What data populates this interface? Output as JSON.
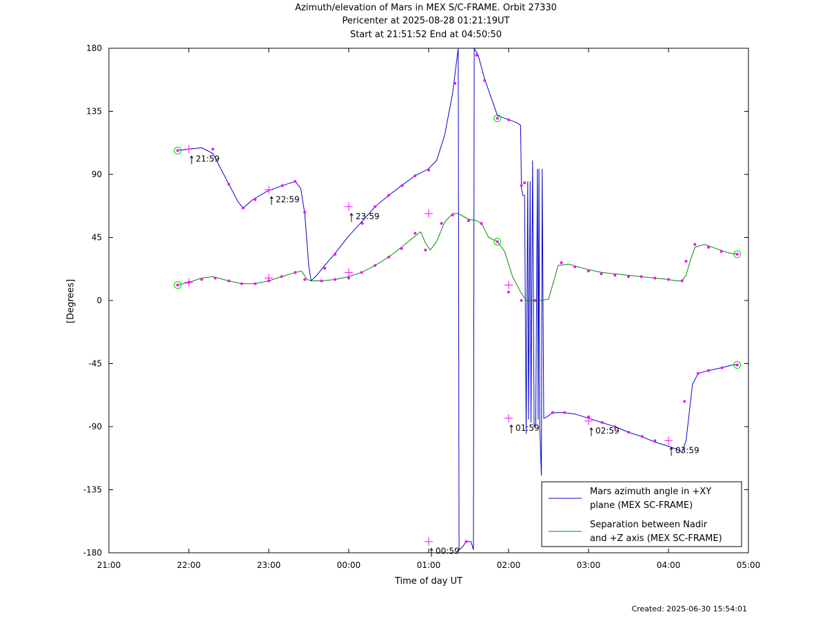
{
  "title": {
    "line1": "Azimuth/elevation of Mars in MEX S/C-FRAME.  Orbit 27330",
    "line2": "Pericenter at 2025-08-28 01:21:19UT",
    "line3": "Start at 21:51:52 End at 04:50:50"
  },
  "footer": "Created: 2025-06-30 15:54:01",
  "chart_data": {
    "type": "line",
    "xlabel": "Time of day UT",
    "ylabel": "[Degrees]",
    "x_units": "hours after 21:00 UT",
    "xlim": [
      0,
      8
    ],
    "ylim": [
      -180,
      180
    ],
    "x_ticks": [
      0,
      1,
      2,
      3,
      4,
      5,
      6,
      7,
      8
    ],
    "x_tick_labels": [
      "21:00",
      "22:00",
      "23:00",
      "00:00",
      "01:00",
      "02:00",
      "03:00",
      "04:00",
      "05:00"
    ],
    "y_ticks": [
      180,
      135,
      90,
      45,
      0,
      -45,
      -90,
      -135,
      -180
    ],
    "y_tick_labels": [
      "180",
      "135",
      "90",
      "45",
      "0",
      "-45",
      "-90",
      "-135",
      "-180"
    ],
    "grid": false,
    "legend_position": "bottom-right",
    "series": [
      {
        "name": "Mars azimuth angle in +XY plane (MEX SC-FRAME)",
        "legend_lines": [
          "Mars azimuth angle in +XY",
          "plane (MEX SC-FRAME)"
        ],
        "color": "#0000cc",
        "points": [
          [
            0.86,
            107
          ],
          [
            1.0,
            108
          ],
          [
            1.16,
            109
          ],
          [
            1.3,
            105
          ],
          [
            1.5,
            83
          ],
          [
            1.62,
            70
          ],
          [
            1.68,
            66
          ],
          [
            1.8,
            72
          ],
          [
            1.98,
            78
          ],
          [
            2.17,
            82
          ],
          [
            2.33,
            85
          ],
          [
            2.4,
            80
          ],
          [
            2.45,
            62
          ],
          [
            2.5,
            25
          ],
          [
            2.53,
            14
          ],
          [
            2.6,
            18
          ],
          [
            2.7,
            25
          ],
          [
            2.82,
            33
          ],
          [
            3.0,
            46
          ],
          [
            3.16,
            56
          ],
          [
            3.33,
            67
          ],
          [
            3.5,
            75
          ],
          [
            3.66,
            82
          ],
          [
            3.83,
            89
          ],
          [
            4.0,
            94
          ],
          [
            4.1,
            100
          ],
          [
            4.2,
            118
          ],
          [
            4.3,
            148
          ],
          [
            4.37,
            180
          ],
          [
            4.38,
            -178
          ],
          [
            4.42,
            -176
          ],
          [
            4.47,
            -172
          ],
          [
            4.53,
            -172
          ],
          [
            4.56,
            -178
          ],
          [
            4.57,
            180
          ],
          [
            4.62,
            175
          ],
          [
            4.7,
            158
          ],
          [
            4.86,
            132
          ],
          [
            5.0,
            129
          ],
          [
            5.1,
            127
          ],
          [
            5.15,
            125
          ],
          [
            5.16,
            80
          ],
          [
            5.18,
            75
          ],
          [
            5.2,
            75
          ],
          [
            5.22,
            -95
          ],
          [
            5.24,
            85
          ],
          [
            5.25,
            -85
          ],
          [
            5.27,
            85
          ],
          [
            5.28,
            -87
          ],
          [
            5.3,
            100
          ],
          [
            5.32,
            -90
          ],
          [
            5.34,
            -88
          ],
          [
            5.36,
            94
          ],
          [
            5.37,
            -85
          ],
          [
            5.38,
            94
          ],
          [
            5.39,
            -90
          ],
          [
            5.41,
            -125
          ],
          [
            5.42,
            94
          ],
          [
            5.44,
            -84
          ],
          [
            5.48,
            -83
          ],
          [
            5.55,
            -80
          ],
          [
            5.7,
            -80
          ],
          [
            5.83,
            -81
          ],
          [
            6.0,
            -84
          ],
          [
            6.16,
            -87
          ],
          [
            6.33,
            -90
          ],
          [
            6.5,
            -94
          ],
          [
            6.66,
            -97
          ],
          [
            6.83,
            -101
          ],
          [
            7.0,
            -104
          ],
          [
            7.1,
            -106
          ],
          [
            7.17,
            -108
          ],
          [
            7.22,
            -100
          ],
          [
            7.3,
            -60
          ],
          [
            7.37,
            -52
          ],
          [
            7.5,
            -50
          ],
          [
            7.66,
            -48
          ],
          [
            7.8,
            -46
          ],
          [
            7.86,
            -46
          ]
        ],
        "markers": [
          [
            0.86,
            107
          ],
          [
            1.3,
            108
          ],
          [
            1.5,
            83
          ],
          [
            1.68,
            66
          ],
          [
            1.83,
            72
          ],
          [
            2.17,
            82
          ],
          [
            2.33,
            85
          ],
          [
            2.45,
            63
          ],
          [
            2.7,
            23
          ],
          [
            2.83,
            33
          ],
          [
            3.17,
            55
          ],
          [
            3.33,
            67
          ],
          [
            3.5,
            75
          ],
          [
            3.67,
            82
          ],
          [
            3.83,
            89
          ],
          [
            4.0,
            93
          ],
          [
            4.33,
            155
          ],
          [
            4.47,
            -172
          ],
          [
            4.6,
            175
          ],
          [
            4.7,
            157
          ],
          [
            4.86,
            130
          ],
          [
            5.0,
            129
          ],
          [
            5.16,
            82
          ],
          [
            5.2,
            84
          ],
          [
            5.55,
            -80
          ],
          [
            5.7,
            -80
          ],
          [
            6.0,
            -83
          ],
          [
            6.17,
            -87
          ],
          [
            6.33,
            -90
          ],
          [
            6.5,
            -94
          ],
          [
            6.67,
            -97
          ],
          [
            6.83,
            -100
          ],
          [
            7.2,
            -72
          ],
          [
            7.37,
            -52
          ],
          [
            7.5,
            -50
          ],
          [
            7.67,
            -48
          ],
          [
            7.86,
            -46
          ]
        ],
        "hour_crosses": [
          [
            1.0,
            108
          ],
          [
            2.0,
            79
          ],
          [
            3.0,
            67
          ],
          [
            4.0,
            -172
          ],
          [
            5.0,
            -84
          ],
          [
            6.0,
            -86
          ],
          [
            7.0,
            -100
          ]
        ],
        "start_end": [
          [
            0.86,
            107
          ],
          [
            4.86,
            130
          ],
          [
            7.86,
            -46
          ]
        ]
      },
      {
        "name": "Separation between Nadir and +Z axis (MEX SC-FRAME)",
        "legend_lines": [
          "Separation between Nadir",
          "and +Z axis (MEX SC-FRAME)"
        ],
        "color": "#008800",
        "points": [
          [
            0.86,
            11
          ],
          [
            1.0,
            13
          ],
          [
            1.16,
            16
          ],
          [
            1.3,
            17
          ],
          [
            1.5,
            14
          ],
          [
            1.66,
            12
          ],
          [
            1.83,
            12
          ],
          [
            2.0,
            14
          ],
          [
            2.16,
            17
          ],
          [
            2.33,
            20
          ],
          [
            2.41,
            21
          ],
          [
            2.48,
            15
          ],
          [
            2.53,
            14
          ],
          [
            2.66,
            14
          ],
          [
            2.83,
            15
          ],
          [
            3.0,
            17
          ],
          [
            3.16,
            20
          ],
          [
            3.33,
            25
          ],
          [
            3.5,
            31
          ],
          [
            3.66,
            38
          ],
          [
            3.83,
            46
          ],
          [
            3.9,
            49
          ],
          [
            3.96,
            41
          ],
          [
            4.02,
            36
          ],
          [
            4.1,
            42
          ],
          [
            4.2,
            56
          ],
          [
            4.3,
            62
          ],
          [
            4.37,
            62
          ],
          [
            4.5,
            58
          ],
          [
            4.6,
            57
          ],
          [
            4.66,
            55
          ],
          [
            4.75,
            45
          ],
          [
            4.86,
            42
          ],
          [
            4.95,
            35
          ],
          [
            5.05,
            17
          ],
          [
            5.15,
            6
          ],
          [
            5.22,
            0
          ],
          [
            5.4,
            0
          ],
          [
            5.5,
            1
          ],
          [
            5.58,
            17
          ],
          [
            5.62,
            25
          ],
          [
            5.75,
            26
          ],
          [
            6.0,
            22
          ],
          [
            6.16,
            20
          ],
          [
            6.33,
            19
          ],
          [
            6.5,
            18
          ],
          [
            6.66,
            17
          ],
          [
            6.83,
            16
          ],
          [
            7.0,
            15
          ],
          [
            7.1,
            14
          ],
          [
            7.17,
            14
          ],
          [
            7.22,
            18
          ],
          [
            7.27,
            28
          ],
          [
            7.33,
            38
          ],
          [
            7.45,
            40
          ],
          [
            7.6,
            37
          ],
          [
            7.75,
            34
          ],
          [
            7.86,
            33
          ]
        ],
        "markers": [
          [
            0.86,
            11
          ],
          [
            1.0,
            13
          ],
          [
            1.16,
            15
          ],
          [
            1.33,
            16
          ],
          [
            1.5,
            14
          ],
          [
            1.66,
            12
          ],
          [
            1.83,
            12
          ],
          [
            2.0,
            14
          ],
          [
            2.16,
            17
          ],
          [
            2.33,
            20
          ],
          [
            2.45,
            15
          ],
          [
            2.66,
            14
          ],
          [
            2.83,
            15
          ],
          [
            3.0,
            16
          ],
          [
            3.16,
            20
          ],
          [
            3.33,
            25
          ],
          [
            3.5,
            31
          ],
          [
            3.66,
            37
          ],
          [
            3.83,
            48
          ],
          [
            3.96,
            36
          ],
          [
            4.16,
            55
          ],
          [
            4.3,
            61
          ],
          [
            4.5,
            57
          ],
          [
            4.66,
            55
          ],
          [
            4.86,
            42
          ],
          [
            5.0,
            6
          ],
          [
            5.16,
            0
          ],
          [
            5.33,
            0
          ],
          [
            5.66,
            27
          ],
          [
            5.83,
            24
          ],
          [
            6.0,
            21
          ],
          [
            6.16,
            19
          ],
          [
            6.33,
            18
          ],
          [
            6.5,
            17
          ],
          [
            6.66,
            17
          ],
          [
            6.83,
            16
          ],
          [
            7.0,
            15
          ],
          [
            7.17,
            14
          ],
          [
            7.22,
            28
          ],
          [
            7.33,
            40
          ],
          [
            7.5,
            38
          ],
          [
            7.66,
            35
          ],
          [
            7.86,
            33
          ]
        ],
        "hour_crosses": [
          [
            1.0,
            13
          ],
          [
            2.0,
            16
          ],
          [
            3.0,
            20
          ],
          [
            4.0,
            62
          ],
          [
            5.0,
            11
          ]
        ],
        "start_end": [
          [
            0.86,
            11
          ],
          [
            4.86,
            42
          ],
          [
            7.86,
            33
          ]
        ]
      }
    ],
    "annotations": [
      {
        "text": "21:59",
        "x": 1.0,
        "y": 108
      },
      {
        "text": "22:59",
        "x": 2.0,
        "y": 79
      },
      {
        "text": "23:59",
        "x": 3.0,
        "y": 67
      },
      {
        "text": "00:59",
        "x": 4.0,
        "y": -172
      },
      {
        "text": "01:59",
        "x": 5.0,
        "y": -84
      },
      {
        "text": "02:59",
        "x": 6.0,
        "y": -86
      },
      {
        "text": "03:59",
        "x": 7.0,
        "y": -100
      }
    ],
    "marker_color": "#ff00ff",
    "start_end_color": "#00cc00"
  }
}
